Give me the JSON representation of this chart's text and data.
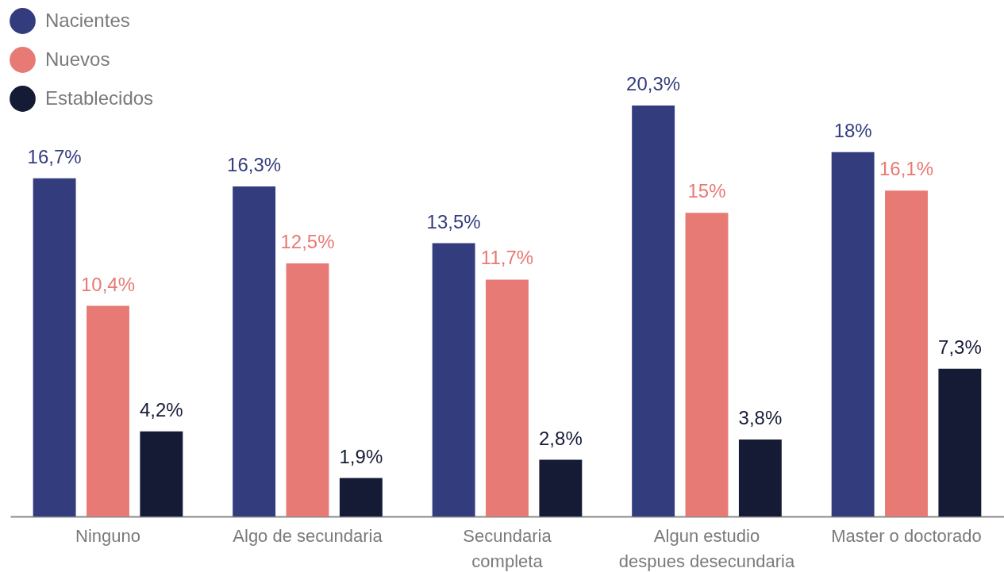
{
  "chart_data": {
    "type": "bar",
    "categories": [
      "Ninguno",
      "Algo de secundaria",
      "Secundaria completa",
      "Algun estudio despues desecundaria",
      "Master o doctorado"
    ],
    "series": [
      {
        "name": "Nacientes",
        "color": "#333d7d",
        "values": [
          16.7,
          16.3,
          13.5,
          20.3,
          18
        ],
        "value_labels": [
          "16,7%",
          "16,3%",
          "13,5%",
          "20,3%",
          "18%"
        ]
      },
      {
        "name": "Nuevos",
        "color": "#e77a74",
        "values": [
          10.4,
          12.5,
          11.7,
          15,
          16.1
        ],
        "value_labels": [
          "10,4%",
          "12,5%",
          "11,7%",
          "15%",
          "16,1%"
        ]
      },
      {
        "name": "Establecidos",
        "color": "#151a35",
        "values": [
          4.2,
          1.9,
          2.8,
          3.8,
          7.3
        ],
        "value_labels": [
          "4,2%",
          "1,9%",
          "2,8%",
          "3,8%",
          "7,3%"
        ]
      }
    ],
    "legend": "top left",
    "tick_labels": "x"
  }
}
